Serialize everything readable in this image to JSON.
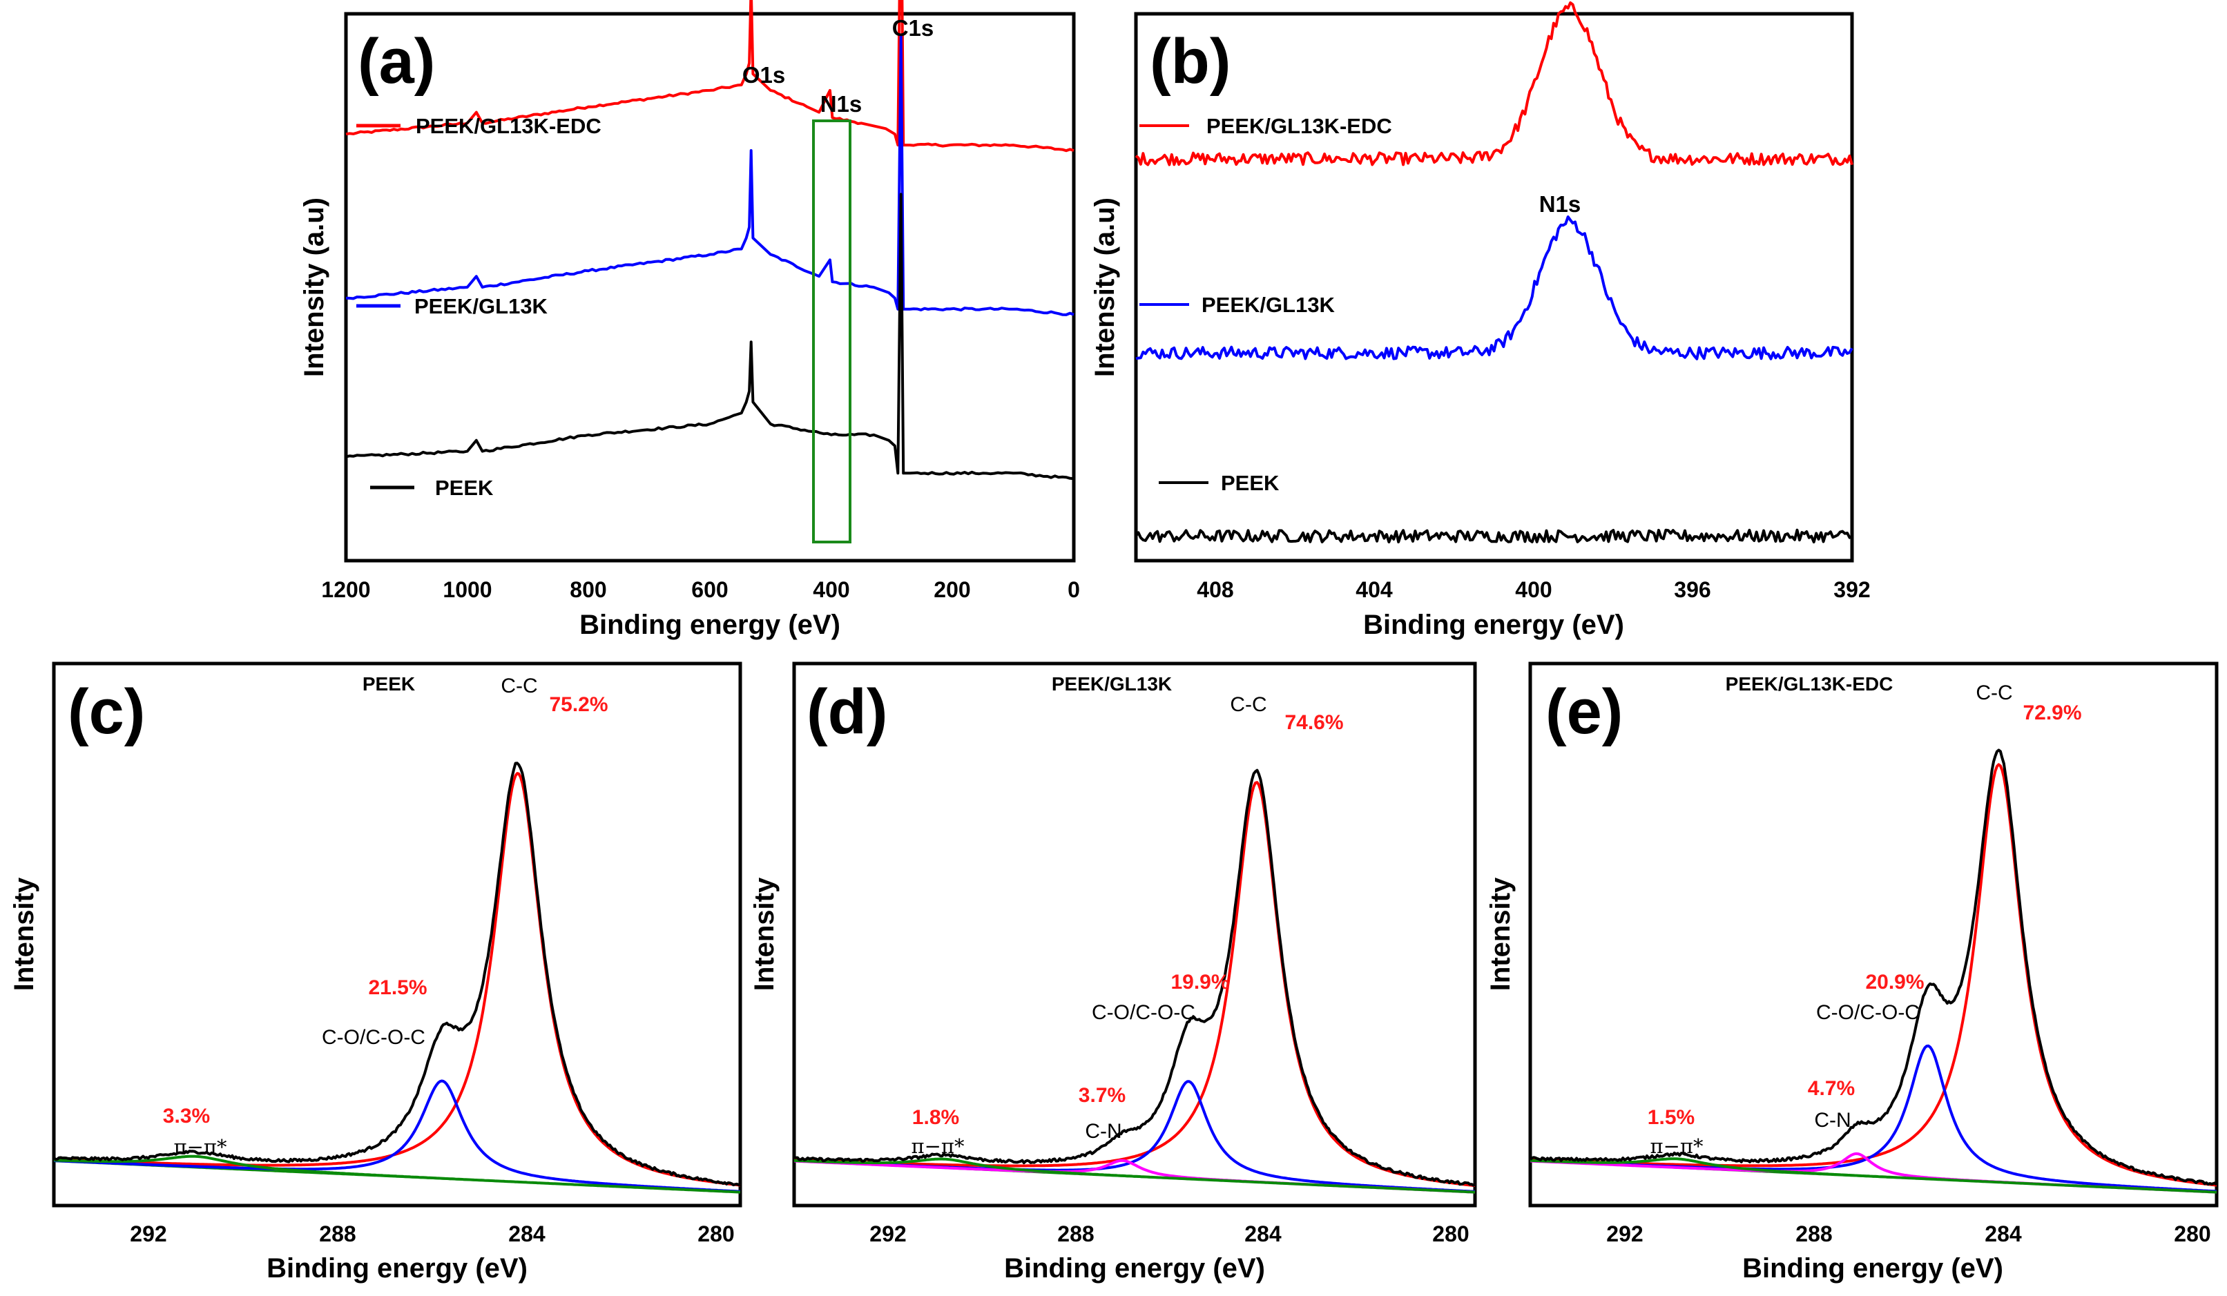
{
  "chart_data": [
    {
      "panel": "(a)",
      "type": "line",
      "xlabel": "Binding energy (eV)",
      "ylabel": "Intensity (a.u)",
      "xlim": [
        1200,
        0
      ],
      "x_reversed": true,
      "xticks": [
        "1200",
        "1000",
        "800",
        "600",
        "400",
        "200",
        "0"
      ],
      "grid": false,
      "legend_placement": "left, beside each curve",
      "highlight_box": {
        "from": 430,
        "to": 370,
        "color": "#1a8a1a"
      },
      "series": [
        {
          "name": "PEEK/GL13K-EDC",
          "color": "#ff0000",
          "points": [
            [
              1200,
              0.78
            ],
            [
              1000,
              0.8
            ],
            [
              985,
              0.82
            ],
            [
              975,
              0.8
            ],
            [
              800,
              0.83
            ],
            [
              600,
              0.86
            ],
            [
              548,
              0.87
            ],
            [
              540,
              0.89
            ],
            [
              535,
              0.91
            ],
            [
              532,
              1.05
            ],
            [
              529,
              0.89
            ],
            [
              500,
              0.86
            ],
            [
              440,
              0.83
            ],
            [
              420,
              0.82
            ],
            [
              402,
              0.86
            ],
            [
              398,
              0.81
            ],
            [
              350,
              0.8
            ],
            [
              310,
              0.79
            ],
            [
              295,
              0.78
            ],
            [
              290,
              0.76
            ],
            [
              285,
              1.27
            ],
            [
              281,
              0.76
            ],
            [
              270,
              0.76
            ],
            [
              150,
              0.76
            ],
            [
              100,
              0.76
            ],
            [
              0,
              0.75
            ]
          ]
        },
        {
          "name": "PEEK/GL13K",
          "color": "#0000ff",
          "points": [
            [
              1200,
              0.48
            ],
            [
              1000,
              0.5
            ],
            [
              985,
              0.52
            ],
            [
              975,
              0.5
            ],
            [
              800,
              0.53
            ],
            [
              600,
              0.56
            ],
            [
              548,
              0.57
            ],
            [
              540,
              0.59
            ],
            [
              535,
              0.61
            ],
            [
              532,
              0.75
            ],
            [
              529,
              0.59
            ],
            [
              500,
              0.56
            ],
            [
              420,
              0.52
            ],
            [
              402,
              0.55
            ],
            [
              398,
              0.51
            ],
            [
              330,
              0.5
            ],
            [
              305,
              0.49
            ],
            [
              295,
              0.48
            ],
            [
              290,
              0.46
            ],
            [
              285,
              0.96
            ],
            [
              281,
              0.46
            ],
            [
              270,
              0.46
            ],
            [
              150,
              0.46
            ],
            [
              100,
              0.46
            ],
            [
              0,
              0.45
            ]
          ]
        },
        {
          "name": "PEEK",
          "color": "#000000",
          "points": [
            [
              1200,
              0.19
            ],
            [
              1000,
              0.2
            ],
            [
              985,
              0.22
            ],
            [
              975,
              0.2
            ],
            [
              800,
              0.23
            ],
            [
              600,
              0.25
            ],
            [
              548,
              0.27
            ],
            [
              540,
              0.29
            ],
            [
              535,
              0.31
            ],
            [
              532,
              0.4
            ],
            [
              529,
              0.29
            ],
            [
              500,
              0.25
            ],
            [
              400,
              0.23
            ],
            [
              330,
              0.23
            ],
            [
              305,
              0.22
            ],
            [
              295,
              0.21
            ],
            [
              290,
              0.16
            ],
            [
              285,
              0.67
            ],
            [
              281,
              0.16
            ],
            [
              270,
              0.16
            ],
            [
              150,
              0.16
            ],
            [
              100,
              0.16
            ],
            [
              0,
              0.15
            ]
          ]
        }
      ],
      "annotations": [
        {
          "text": "O1s",
          "x": 532
        },
        {
          "text": "N1s",
          "x": 400
        },
        {
          "text": "C1s",
          "x": 285
        }
      ]
    },
    {
      "panel": "(b)",
      "type": "line",
      "xlabel": "Binding energy (eV)",
      "ylabel": "Intensity (a.u)",
      "xlim": [
        410,
        392
      ],
      "x_reversed": true,
      "xticks": [
        "408",
        "404",
        "400",
        "396",
        "392"
      ],
      "grid": false,
      "legend_placement": "left, beside each curve",
      "series": [
        {
          "name": "PEEK/GL13K-EDC",
          "color": "#ff0000",
          "baseline": 0.735,
          "peak_center": 399.1,
          "peak_height": 0.275,
          "peak_width": 0.75
        },
        {
          "name": "PEEK/GL13K",
          "color": "#0000ff",
          "baseline": 0.38,
          "peak_center": 399.1,
          "peak_height": 0.24,
          "peak_width": 0.75
        },
        {
          "name": "PEEK",
          "color": "#000000",
          "baseline": 0.045,
          "peak_center": 399.5,
          "peak_height": 0.0,
          "peak_width": 1.0
        }
      ],
      "annotations": [
        {
          "text": "N1s",
          "x": 399.1
        }
      ]
    },
    {
      "panel": "(c)",
      "type": "line",
      "sample": "PEEK",
      "xlabel": "Binding energy (eV)",
      "ylabel": "Intensity",
      "xlim": [
        294,
        279.5
      ],
      "x_reversed": true,
      "xticks": [
        "292",
        "288",
        "284",
        "280"
      ],
      "grid": false,
      "components": [
        {
          "label": "C-C",
          "percent": "75.2%",
          "center": 284.2,
          "height": 0.92,
          "width": 0.62,
          "color": "#ff0000"
        },
        {
          "label": "C-O/C-O-C",
          "percent": "21.5%",
          "center": 285.8,
          "height": 0.22,
          "width": 0.55,
          "color": "#0000ff"
        },
        {
          "label": "π−π*",
          "percent": "3.3%",
          "center": 291.0,
          "height": 0.025,
          "width": 0.9,
          "color": "#0a8a0a"
        }
      ],
      "background": {
        "left": 0.04,
        "right": -0.03,
        "color": "#0a8a0a"
      },
      "envelope_color": "#000000"
    },
    {
      "panel": "(d)",
      "type": "line",
      "sample": "PEEK/GL13K",
      "xlabel": "Binding energy (eV)",
      "ylabel": "Intensity",
      "xlim": [
        294,
        279.5
      ],
      "x_reversed": true,
      "xticks": [
        "292",
        "288",
        "284",
        "280"
      ],
      "grid": false,
      "components": [
        {
          "label": "C-C",
          "percent": "74.6%",
          "center": 284.15,
          "height": 0.9,
          "width": 0.6,
          "color": "#ff0000"
        },
        {
          "label": "C-O/C-O-C",
          "percent": "19.9%",
          "center": 285.6,
          "height": 0.22,
          "width": 0.5,
          "color": "#0000ff"
        },
        {
          "label": "C-N",
          "percent": "3.7%",
          "center": 287.0,
          "height": 0.035,
          "width": 0.45,
          "color": "#ff00ff"
        },
        {
          "label": "π−π*",
          "percent": "1.8%",
          "center": 290.8,
          "height": 0.02,
          "width": 0.8,
          "color": "#0a8a0a"
        }
      ],
      "background": {
        "left": 0.04,
        "right": -0.03,
        "color": "#0a8a0a"
      },
      "envelope_color": "#000000"
    },
    {
      "panel": "(e)",
      "type": "line",
      "sample": "PEEK/GL13K-EDC",
      "xlabel": "Binding energy (eV)",
      "ylabel": "Intensity",
      "xlim": [
        294,
        279.5
      ],
      "x_reversed": true,
      "xticks": [
        "292",
        "288",
        "284",
        "280"
      ],
      "grid": false,
      "components": [
        {
          "label": "C-C",
          "percent": "72.9%",
          "center": 284.1,
          "height": 0.94,
          "width": 0.6,
          "color": "#ff0000"
        },
        {
          "label": "C-O/C-O-C",
          "percent": "20.9%",
          "center": 285.6,
          "height": 0.3,
          "width": 0.5,
          "color": "#0000ff"
        },
        {
          "label": "C-N",
          "percent": "4.7%",
          "center": 287.1,
          "height": 0.05,
          "width": 0.4,
          "color": "#ff00ff"
        },
        {
          "label": "π−π*",
          "percent": "1.5%",
          "center": 290.9,
          "height": 0.02,
          "width": 0.8,
          "color": "#0a8a0a"
        }
      ],
      "background": {
        "left": 0.04,
        "right": -0.03,
        "color": "#0a8a0a"
      },
      "envelope_color": "#000000"
    }
  ]
}
